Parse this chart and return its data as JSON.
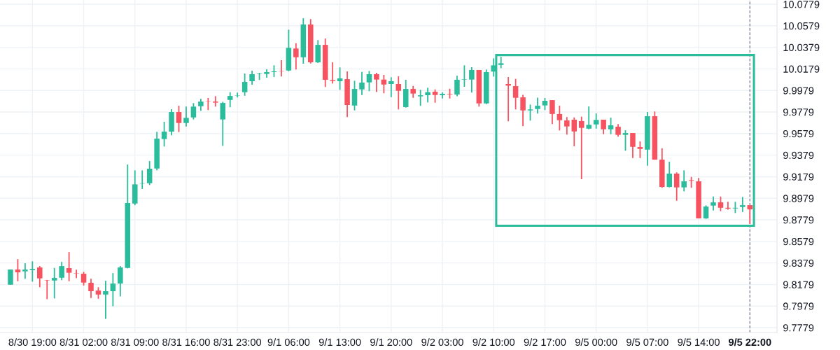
{
  "chart_data": {
    "type": "candlestick",
    "categories": [
      null,
      null,
      null,
      "8/30 19:00",
      null,
      null,
      null,
      null,
      null,
      null,
      "8/31 02:00",
      null,
      null,
      null,
      null,
      null,
      null,
      "8/31 09:00",
      null,
      null,
      null,
      null,
      null,
      null,
      "8/31 16:00",
      null,
      null,
      null,
      null,
      null,
      null,
      "8/31 23:00",
      null,
      null,
      null,
      null,
      null,
      null,
      "9/1 06:00",
      null,
      null,
      null,
      null,
      null,
      null,
      "9/1 13:00",
      null,
      null,
      null,
      null,
      null,
      null,
      "9/1 20:00",
      null,
      null,
      null,
      null,
      null,
      null,
      "9/2 03:00",
      null,
      null,
      null,
      null,
      null,
      null,
      "9/2 10:00",
      null,
      null,
      null,
      null,
      null,
      null,
      "9/2 17:00",
      null,
      null,
      null,
      null,
      null,
      null,
      "9/5 00:00",
      null,
      null,
      null,
      null,
      null,
      null,
      "9/5 07:00",
      null,
      null,
      null,
      null,
      null,
      null,
      "9/5 14:00",
      null,
      null,
      null,
      null,
      null,
      null,
      "9/5 22:00"
    ],
    "ohlc": [
      [
        9.8177,
        9.8318,
        9.8177,
        9.8318
      ],
      [
        9.8318,
        9.8415,
        9.821,
        9.8292
      ],
      [
        9.8301,
        9.8376,
        9.8232,
        9.8318
      ],
      [
        9.8313,
        9.8394,
        9.8206,
        9.8324
      ],
      [
        9.8337,
        9.835,
        9.8154,
        9.8236
      ],
      [
        9.822,
        9.8222,
        9.8043,
        9.8217
      ],
      [
        9.8216,
        9.8333,
        9.805,
        9.824
      ],
      [
        9.8242,
        9.8389,
        9.8219,
        9.835
      ],
      [
        9.8331,
        9.848,
        9.821,
        9.8288
      ],
      [
        9.8283,
        9.8316,
        9.8238,
        9.828
      ],
      [
        9.8279,
        9.8297,
        9.817,
        9.8197
      ],
      [
        9.8195,
        9.8232,
        9.8054,
        9.8117
      ],
      [
        9.8123,
        9.8154,
        9.8047,
        9.8086
      ],
      [
        9.8086,
        9.8214,
        9.7861,
        9.8117
      ],
      [
        9.8117,
        9.8285,
        9.7978,
        9.8188
      ],
      [
        9.8188,
        9.835,
        9.8069,
        9.8337
      ],
      [
        9.8333,
        9.9292,
        9.8329,
        9.8935
      ],
      [
        9.893,
        9.9238,
        9.8914,
        9.9108
      ],
      [
        9.9115,
        9.9238,
        9.9065,
        9.9118
      ],
      [
        9.9119,
        9.9324,
        9.9102,
        9.9253
      ],
      [
        9.9255,
        9.9595,
        9.9238,
        9.9532
      ],
      [
        9.9528,
        9.9688,
        9.9459,
        9.9597
      ],
      [
        9.9597,
        9.9805,
        9.9563,
        9.9779
      ],
      [
        9.9779,
        9.9838,
        9.9593,
        9.9677
      ],
      [
        9.9677,
        9.9829,
        9.9645,
        9.9725
      ],
      [
        9.9729,
        9.9862,
        9.971,
        9.9829
      ],
      [
        9.9833,
        9.9902,
        9.979,
        9.9876
      ],
      [
        9.9879,
        9.9909,
        9.9797,
        9.9876
      ],
      [
        9.9876,
        9.9926,
        9.9829,
        9.9866
      ],
      [
        9.971,
        9.9874,
        9.9465,
        9.9863
      ],
      [
        9.9891,
        9.9963,
        9.9823,
        9.9928
      ],
      [
        9.9932,
        9.9959,
        9.9914,
        9.9935
      ],
      [
        9.9963,
        10.0136,
        9.993,
        10.0058
      ],
      [
        10.0065,
        10.0162,
        10.0032,
        10.013
      ],
      [
        10.013,
        10.0143,
        10.0076,
        10.0134
      ],
      [
        10.0132,
        10.0175,
        10.0097,
        10.0149
      ],
      [
        10.0149,
        10.0212,
        10.0104,
        10.0156
      ],
      [
        10.0158,
        10.026,
        10.0108,
        10.0155
      ],
      [
        10.0164,
        10.0543,
        10.0158,
        10.0374
      ],
      [
        10.0368,
        10.0417,
        10.0173,
        10.0287
      ],
      [
        10.0287,
        10.0649,
        10.0227,
        10.0591
      ],
      [
        10.0591,
        10.0641,
        10.0229,
        10.024
      ],
      [
        10.024,
        10.0446,
        10.0234,
        10.0402
      ],
      [
        10.0402,
        10.0461,
        10.0011,
        10.0078
      ],
      [
        10.0076,
        10.024,
        10.0043,
        10.0067
      ],
      [
        10.0065,
        10.0193,
        9.9985,
        10.0091
      ],
      [
        10.0084,
        10.0156,
        9.9732,
        9.9844
      ],
      [
        9.9839,
        10.0069,
        9.9794,
        9.9993
      ],
      [
        9.9989,
        10.0151,
        9.9937,
        10.0052
      ],
      [
        10.0054,
        10.016,
        9.9972,
        10.013
      ],
      [
        10.013,
        10.0143,
        9.9965,
        10.008
      ],
      [
        10.008,
        10.0123,
        9.9953,
        10.0034
      ],
      [
        10.0039,
        10.0102,
        9.9917,
        10.0065
      ],
      [
        10.0039,
        10.011,
        9.9803,
        9.9976
      ],
      [
        9.9825,
        10.0078,
        9.982,
        9.9993
      ],
      [
        9.9993,
        10.0021,
        9.9911,
        9.995
      ],
      [
        9.9924,
        9.9985,
        9.9836,
        9.9934
      ],
      [
        9.9935,
        10.0004,
        9.9868,
        9.9963
      ],
      [
        9.9967,
        9.9989,
        9.9865,
        9.9937
      ],
      [
        9.9935,
        9.9961,
        9.9904,
        9.9948
      ],
      [
        9.9948,
        9.9995,
        9.9904,
        9.9943
      ],
      [
        9.9941,
        10.0115,
        9.9926,
        10.0078
      ],
      [
        10.008,
        10.0212,
        10.0013,
        10.0084
      ],
      [
        10.008,
        10.0195,
        9.9959,
        10.0169
      ],
      [
        10.0169,
        10.0169,
        9.9829,
        9.9859
      ],
      [
        9.9859,
        10.0173,
        9.9852,
        10.0149
      ],
      [
        10.0154,
        10.0277,
        10.0108,
        10.0212
      ],
      [
        10.0216,
        10.0292,
        10.0186,
        10.0231
      ],
      [
        10.0039,
        10.0104,
        9.9693,
        10.0024
      ],
      [
        10.0019,
        10.0086,
        9.9803,
        9.9911
      ],
      [
        9.9915,
        9.9939,
        9.9647,
        9.9794
      ],
      [
        9.9794,
        9.9848,
        9.9699,
        9.9803
      ],
      [
        9.9807,
        9.9913,
        9.9764,
        9.9837
      ],
      [
        9.984,
        9.9909,
        9.9797,
        9.9883
      ],
      [
        9.9889,
        9.9889,
        9.9667,
        9.9761
      ],
      [
        9.976,
        9.9838,
        9.9608,
        9.9703
      ],
      [
        9.9701,
        9.9732,
        9.9569,
        9.9645
      ],
      [
        9.9708,
        9.9729,
        9.9461,
        9.9599
      ],
      [
        9.9695,
        9.9736,
        9.9156,
        9.9632
      ],
      [
        9.9625,
        9.9831,
        9.9619,
        9.966
      ],
      [
        9.9664,
        9.9766,
        9.9625,
        9.9706
      ],
      [
        9.9708,
        9.9708,
        9.9573,
        9.9619
      ],
      [
        9.9619,
        9.9727,
        9.9573,
        9.9656
      ],
      [
        9.9643,
        9.9667,
        9.955,
        9.9567
      ],
      [
        9.9567,
        9.961,
        9.942,
        9.9584
      ],
      [
        9.9584,
        9.9584,
        9.9352,
        9.9456
      ],
      [
        9.9454,
        9.9506,
        9.9352,
        9.9437
      ],
      [
        9.943,
        9.9779,
        9.9281,
        9.974
      ],
      [
        9.974,
        9.9784,
        9.9337,
        9.9337
      ],
      [
        9.9337,
        9.9443,
        9.9076,
        9.9084
      ],
      [
        9.9084,
        9.9318,
        9.908,
        9.9208
      ],
      [
        9.9208,
        9.9219,
        9.8956,
        9.908
      ],
      [
        9.908,
        9.9238,
        9.9043,
        9.9136
      ],
      [
        9.9147,
        9.9177,
        9.9076,
        9.9141
      ],
      [
        9.9136,
        9.9167,
        9.8792,
        9.8792
      ],
      [
        9.8792,
        9.8913,
        9.8788,
        9.8902
      ],
      [
        9.8911,
        9.8995,
        9.8865,
        9.8941
      ],
      [
        9.8941,
        9.8995,
        9.8859,
        9.8891
      ],
      [
        9.8891,
        9.8946,
        9.8874,
        9.8883
      ],
      [
        9.8885,
        9.8946,
        9.8842,
        9.8891
      ],
      [
        9.8898,
        9.8991,
        9.8852,
        9.8915
      ],
      [
        9.8915,
        9.8915,
        9.874,
        9.8876
      ]
    ],
    "colors": [
      "#2bbc9c",
      "#f7525f",
      "#2bbc9c",
      "#2bbc9c",
      "#f7525f",
      "#f7525f",
      "#2bbc9c",
      "#2bbc9c",
      "#f7525f",
      "#f7525f",
      "#f7525f",
      "#f7525f",
      "#f7525f",
      "#2bbc9c",
      "#2bbc9c",
      "#2bbc9c",
      "#2bbc9c",
      "#2bbc9c",
      "#2bbc9c",
      "#2bbc9c",
      "#2bbc9c",
      "#2bbc9c",
      "#2bbc9c",
      "#f7525f",
      "#2bbc9c",
      "#2bbc9c",
      "#2bbc9c",
      "#f7525f",
      "#f7525f",
      "#2bbc9c",
      "#2bbc9c",
      "#2bbc9c",
      "#2bbc9c",
      "#2bbc9c",
      "#2bbc9c",
      "#2bbc9c",
      "#2bbc9c",
      "#f7525f",
      "#2bbc9c",
      "#f7525f",
      "#2bbc9c",
      "#f7525f",
      "#2bbc9c",
      "#f7525f",
      "#f7525f",
      "#2bbc9c",
      "#f7525f",
      "#2bbc9c",
      "#2bbc9c",
      "#2bbc9c",
      "#f7525f",
      "#f7525f",
      "#2bbc9c",
      "#f7525f",
      "#2bbc9c",
      "#f7525f",
      "#2bbc9c",
      "#2bbc9c",
      "#f7525f",
      "#2bbc9c",
      "#f7525f",
      "#2bbc9c",
      "#2bbc9c",
      "#2bbc9c",
      "#f7525f",
      "#2bbc9c",
      "#2bbc9c",
      "#2bbc9c",
      "#f7525f",
      "#f7525f",
      "#f7525f",
      "#2bbc9c",
      "#2bbc9c",
      "#2bbc9c",
      "#f7525f",
      "#f7525f",
      "#f7525f",
      "#f7525f",
      "#f7525f",
      "#2bbc9c",
      "#2bbc9c",
      "#f7525f",
      "#2bbc9c",
      "#f7525f",
      "#2bbc9c",
      "#f7525f",
      "#f7525f",
      "#2bbc9c",
      "#f7525f",
      "#f7525f",
      "#2bbc9c",
      "#f7525f",
      "#2bbc9c",
      "#f7525f",
      "#f7525f",
      "#2bbc9c",
      "#2bbc9c",
      "#f7525f",
      "#f7525f",
      "#2bbc9c",
      "#2bbc9c",
      "#f7525f"
    ],
    "ylim": [
      9.7734,
      10.0818
    ],
    "yticks": [
      9.7779,
      9.7979,
      9.8179,
      9.8379,
      9.8579,
      9.8779,
      9.8979,
      9.9179,
      9.9379,
      9.9579,
      9.9779,
      9.9979,
      10.0179,
      10.0379,
      10.0579,
      10.0779
    ],
    "ref_lines": [
      {
        "axis": "x",
        "value": "9/5 22:00",
        "color": "#787b86",
        "line_style": "dashed"
      }
    ],
    "grid": true
  }
}
